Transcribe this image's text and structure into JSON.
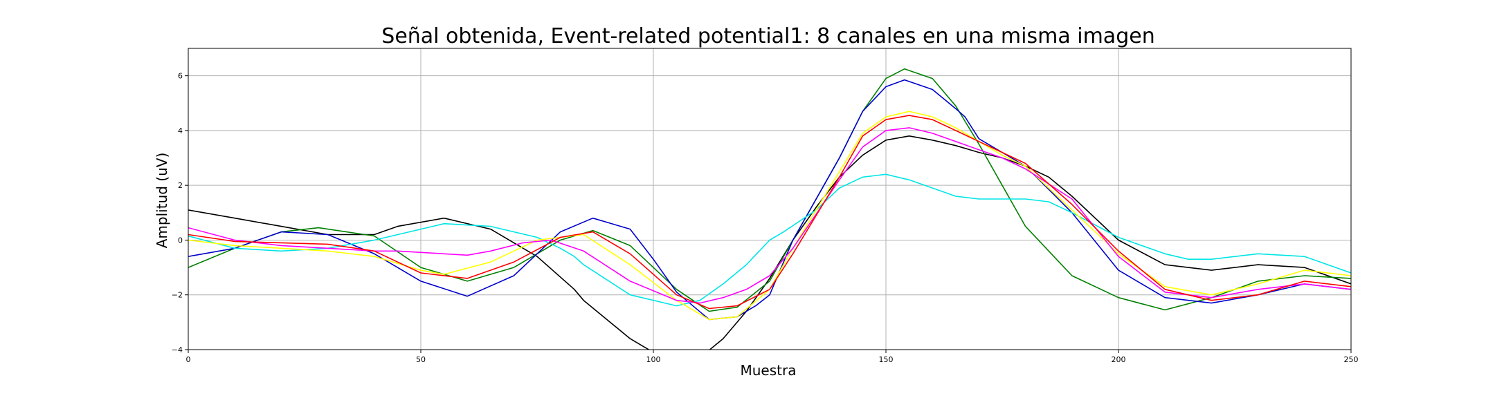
{
  "chart_data": {
    "type": "line",
    "title": "Señal obtenida, Event-related potential1: 8 canales en una misma imagen",
    "xlabel": "Muestra",
    "ylabel": "Amplitud (uV)",
    "xlim": [
      0,
      250
    ],
    "ylim": [
      -4,
      7
    ],
    "xticks": [
      0,
      50,
      100,
      150,
      200,
      250
    ],
    "yticks": [
      -4,
      -2,
      0,
      2,
      4,
      6
    ],
    "grid": true,
    "legend": "none",
    "series": [
      {
        "color": "#000000",
        "x": [
          0,
          10,
          20,
          30,
          40,
          45,
          55,
          65,
          75,
          83,
          85,
          95,
          100,
          105,
          110,
          115,
          120,
          125,
          130,
          135,
          140,
          145,
          150,
          155,
          160,
          165,
          170,
          175,
          180,
          185,
          190,
          200,
          210,
          220,
          230,
          240,
          250
        ],
        "y": [
          1.1,
          0.8,
          0.5,
          0.2,
          0.2,
          0.5,
          0.8,
          0.4,
          -0.6,
          -1.8,
          -2.2,
          -3.6,
          -4.1,
          -4.4,
          -4.3,
          -3.6,
          -2.6,
          -1.4,
          0.0,
          1.2,
          2.3,
          3.1,
          3.65,
          3.8,
          3.65,
          3.45,
          3.2,
          3.0,
          2.7,
          2.3,
          1.6,
          0.0,
          -0.9,
          -1.1,
          -0.9,
          -1.0,
          -1.6
        ]
      },
      {
        "color": "#008000",
        "x": [
          0,
          10,
          20,
          28,
          40,
          50,
          60,
          70,
          80,
          87,
          95,
          105,
          112,
          118,
          125,
          130,
          140,
          145,
          150,
          154,
          160,
          165,
          170,
          175,
          180,
          190,
          200,
          210,
          220,
          230,
          240,
          250
        ],
        "y": [
          -1.0,
          -0.3,
          0.3,
          0.45,
          0.15,
          -1.0,
          -1.5,
          -1.0,
          0.0,
          0.35,
          -0.2,
          -1.8,
          -2.6,
          -2.45,
          -1.5,
          0.0,
          3.0,
          4.7,
          5.9,
          6.25,
          5.9,
          4.9,
          3.5,
          2.0,
          0.5,
          -1.3,
          -2.1,
          -2.55,
          -2.1,
          -1.5,
          -1.3,
          -1.4
        ]
      },
      {
        "color": "#0000cc",
        "x": [
          0,
          10,
          20,
          30,
          40,
          50,
          60,
          70,
          80,
          87,
          95,
          100,
          105,
          112,
          118,
          122,
          125,
          130,
          140,
          145,
          150,
          154,
          160,
          165,
          167,
          170,
          180,
          190,
          200,
          210,
          220,
          230,
          240,
          250
        ],
        "y": [
          -0.6,
          -0.3,
          0.3,
          0.2,
          -0.5,
          -1.5,
          -2.05,
          -1.3,
          0.3,
          0.8,
          0.4,
          -0.7,
          -1.9,
          -2.9,
          -2.8,
          -2.4,
          -2.0,
          0.0,
          3.0,
          4.7,
          5.6,
          5.85,
          5.5,
          4.8,
          4.5,
          3.7,
          2.7,
          1.0,
          -1.1,
          -2.1,
          -2.3,
          -2.0,
          -1.6,
          -1.8
        ]
      },
      {
        "color": "#00e5e5",
        "x": [
          0,
          10,
          20,
          30,
          40,
          55,
          65,
          75,
          80,
          83,
          85,
          95,
          105,
          110,
          115,
          120,
          125,
          128,
          135,
          140,
          145,
          150,
          155,
          160,
          165,
          170,
          175,
          180,
          185,
          190,
          200,
          210,
          215,
          220,
          230,
          240,
          250
        ],
        "y": [
          0.15,
          -0.3,
          -0.4,
          -0.3,
          0.0,
          0.6,
          0.5,
          0.1,
          -0.3,
          -0.6,
          -0.9,
          -2.0,
          -2.4,
          -2.2,
          -1.6,
          -0.9,
          0.0,
          0.3,
          1.1,
          1.9,
          2.3,
          2.4,
          2.2,
          1.9,
          1.6,
          1.5,
          1.5,
          1.5,
          1.4,
          1.0,
          0.1,
          -0.5,
          -0.7,
          -0.7,
          -0.5,
          -0.6,
          -1.2
        ]
      },
      {
        "color": "#ffff00",
        "x": [
          0,
          10,
          20,
          30,
          40,
          50,
          55,
          65,
          75,
          85,
          95,
          105,
          112,
          118,
          125,
          130,
          140,
          145,
          150,
          155,
          160,
          165,
          170,
          175,
          180,
          190,
          200,
          210,
          220,
          230,
          240,
          250
        ],
        "y": [
          0.0,
          -0.2,
          -0.3,
          -0.4,
          -0.6,
          -1.1,
          -1.25,
          -0.8,
          0.0,
          0.2,
          -0.9,
          -2.2,
          -2.9,
          -2.8,
          -1.8,
          -0.3,
          2.5,
          3.9,
          4.5,
          4.7,
          4.5,
          4.1,
          3.6,
          3.1,
          2.7,
          1.1,
          -0.5,
          -1.7,
          -2.0,
          -1.6,
          -1.1,
          -1.3
        ]
      },
      {
        "color": "#ff00ff",
        "x": [
          0,
          10,
          20,
          30,
          40,
          45,
          55,
          60,
          65,
          72,
          78,
          85,
          95,
          105,
          110,
          115,
          120,
          125,
          130,
          140,
          145,
          150,
          155,
          160,
          165,
          170,
          175,
          180,
          190,
          200,
          210,
          220,
          230,
          240,
          250
        ],
        "y": [
          0.45,
          0.0,
          -0.2,
          -0.3,
          -0.4,
          -0.4,
          -0.5,
          -0.55,
          -0.4,
          -0.1,
          0.0,
          -0.4,
          -1.5,
          -2.2,
          -2.3,
          -2.1,
          -1.8,
          -1.3,
          -0.3,
          2.2,
          3.4,
          4.0,
          4.1,
          3.9,
          3.6,
          3.3,
          3.0,
          2.6,
          1.5,
          -0.6,
          -1.9,
          -2.1,
          -1.8,
          -1.6,
          -1.8
        ]
      },
      {
        "color": "#ff0000",
        "x": [
          0,
          10,
          20,
          30,
          40,
          50,
          60,
          70,
          80,
          87,
          95,
          105,
          112,
          118,
          125,
          130,
          140,
          145,
          150,
          155,
          160,
          165,
          170,
          175,
          180,
          190,
          200,
          210,
          220,
          230,
          240,
          250
        ],
        "y": [
          0.2,
          -0.05,
          -0.1,
          -0.15,
          -0.4,
          -1.2,
          -1.4,
          -0.8,
          0.1,
          0.3,
          -0.5,
          -2.0,
          -2.5,
          -2.4,
          -1.8,
          -0.5,
          2.3,
          3.8,
          4.4,
          4.55,
          4.4,
          4.0,
          3.6,
          3.2,
          2.8,
          1.3,
          -0.4,
          -1.8,
          -2.2,
          -2.0,
          -1.5,
          -1.7
        ]
      }
    ]
  }
}
